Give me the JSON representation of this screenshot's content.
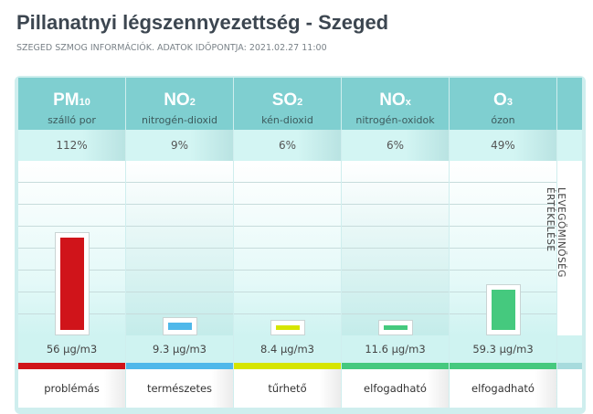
{
  "title": "Pillanatnyi légszennyezettség - Szeged",
  "subtitle": "SZEGED SZMOG INFORMÁCIÓK. ADATOK IDŐPONTJA: 2021.02.27 11:00",
  "side_label": "LEVEGŐMINŐSÉG ÉRTÉKELÉSE",
  "pollutants": [
    {
      "symbol": "PM",
      "sub": "10",
      "name": "szálló por",
      "percent": "112%",
      "pct_value": 112,
      "value": "56 µg/m3",
      "rating": "problémás",
      "color": "#d0141a"
    },
    {
      "symbol": "NO",
      "sub": "2",
      "name": "nitrogén-dioxid",
      "percent": "9%",
      "pct_value": 9,
      "value": "9.3 µg/m3",
      "rating": "természetes",
      "color": "#4fb8ea"
    },
    {
      "symbol": "SO",
      "sub": "2",
      "name": "kén-dioxid",
      "percent": "6%",
      "pct_value": 6,
      "value": "8.4 µg/m3",
      "rating": "tűrhető",
      "color": "#d6e500"
    },
    {
      "symbol": "NO",
      "sub": "x",
      "name": "nitrogén-oxidok",
      "percent": "6%",
      "pct_value": 6,
      "value": "11.6 µg/m3",
      "rating": "elfogadható",
      "color": "#45c97e"
    },
    {
      "symbol": "O",
      "sub": "3",
      "name": "ózon",
      "percent": "49%",
      "pct_value": 49,
      "value": "59.3 µg/m3",
      "rating": "elfogadható",
      "color": "#45c97e"
    }
  ]
}
